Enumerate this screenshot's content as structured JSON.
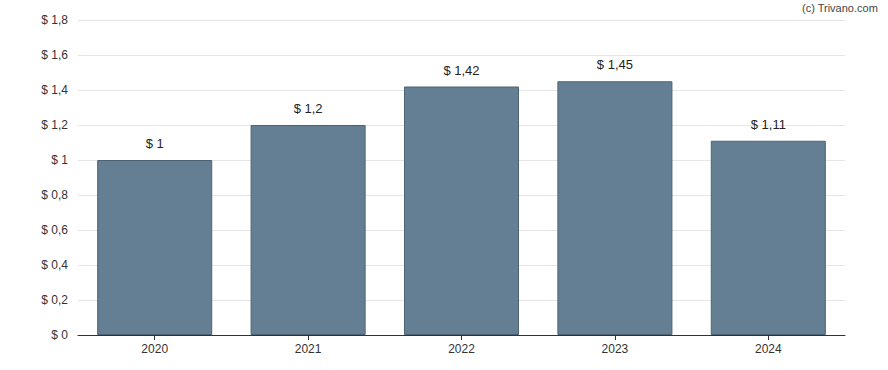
{
  "chart_data": {
    "type": "bar",
    "annotation": "(c) Trivano.com",
    "categories": [
      "2020",
      "2021",
      "2022",
      "2023",
      "2024"
    ],
    "values": [
      1,
      1.2,
      1.42,
      1.45,
      1.11
    ],
    "value_labels": [
      "$ 1",
      "$ 1,2",
      "$ 1,42",
      "$ 1,45",
      "$ 1,11"
    ],
    "data_labels": true,
    "color": "#647f94",
    "ylim": [
      0,
      1.8
    ],
    "yticks": [
      {
        "value": 0,
        "label": "$ 0"
      },
      {
        "value": 0.2,
        "label": "$ 0,2"
      },
      {
        "value": 0.4,
        "label": "$ 0,4"
      },
      {
        "value": 0.6,
        "label": "$ 0,6"
      },
      {
        "value": 0.8,
        "label": "$ 0,8"
      },
      {
        "value": 1,
        "label": "$ 1"
      },
      {
        "value": 1.2,
        "label": "$ 1,2"
      },
      {
        "value": 1.4,
        "label": "$ 1,4"
      },
      {
        "value": 1.6,
        "label": "$ 1,6"
      },
      {
        "value": 1.8,
        "label": "$ 1,8"
      }
    ],
    "grid": true
  }
}
